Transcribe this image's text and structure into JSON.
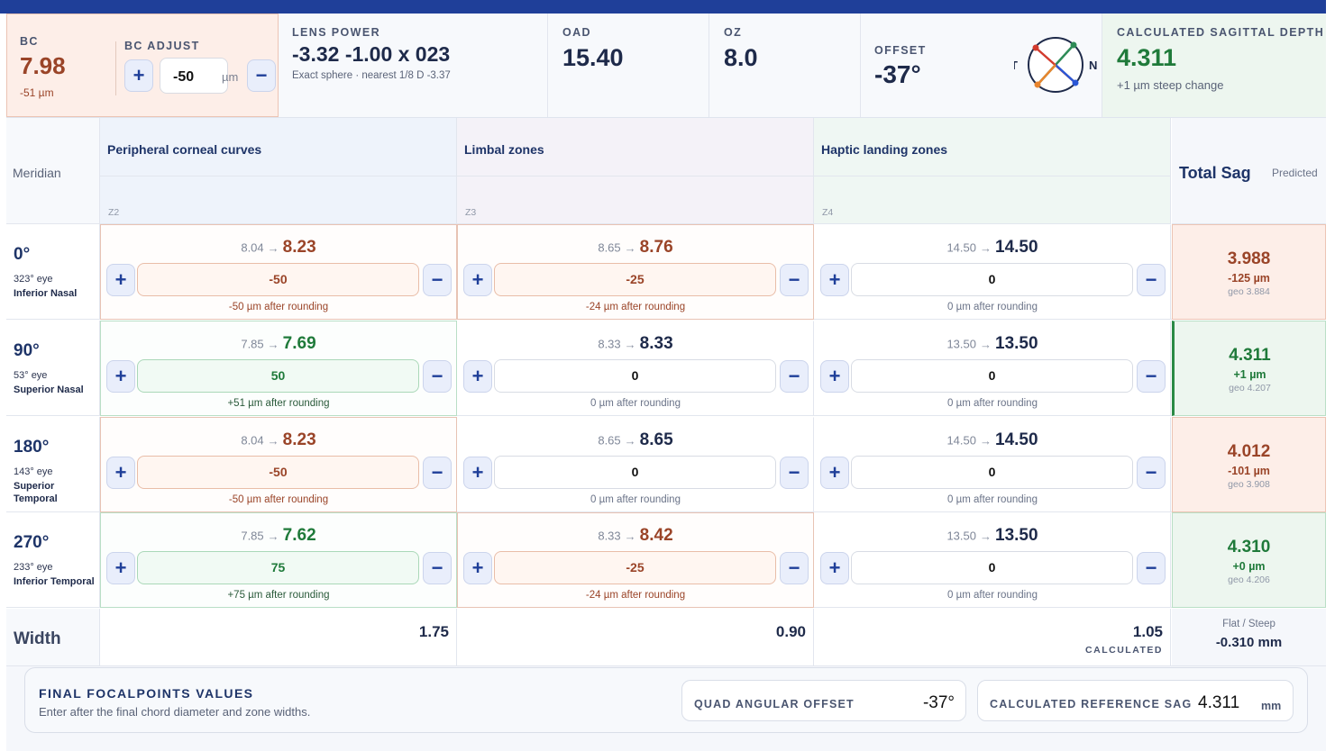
{
  "header": {
    "bc": {
      "label": "BC",
      "value": "7.98",
      "sub": "-51 µm"
    },
    "bc_adjust": {
      "label": "BC ADJUST",
      "value": "-50",
      "unit": "µm",
      "plus": "+",
      "minus": "−"
    },
    "lens_power": {
      "label": "LENS POWER",
      "value": "-3.32 -1.00 x 023",
      "sub": "Exact sphere · nearest 1/8 D -3.37"
    },
    "oad": {
      "label": "OAD",
      "value": "15.40"
    },
    "oz": {
      "label": "OZ",
      "value": "8.0"
    },
    "offset": {
      "label": "OFFSET",
      "value": "-37°",
      "compass_t": "T",
      "compass_n": "N"
    },
    "sag": {
      "label": "CALCULATED SAGITTAL DEPTH",
      "value": "4.311",
      "sub": "+1 µm steep change"
    }
  },
  "grid": {
    "meridian_label": "Meridian",
    "zones": [
      {
        "title": "Peripheral corneal curves",
        "sub": "Z2"
      },
      {
        "title": "Limbal zones",
        "sub": "Z3"
      },
      {
        "title": "Haptic landing zones",
        "sub": "Z4"
      }
    ],
    "total": {
      "title": "Total Sag",
      "sub": "Predicted"
    },
    "rows": [
      {
        "deg": "0°",
        "eye": "323° eye",
        "pos": "Inferior Nasal",
        "cells": [
          {
            "from": "8.04",
            "to": "8.23",
            "input": "-50",
            "note": "-50 µm after rounding"
          },
          {
            "from": "8.65",
            "to": "8.76",
            "input": "-25",
            "note": "-24 µm after rounding"
          },
          {
            "from": "14.50",
            "to": "14.50",
            "input": "0",
            "note": "0 µm after rounding"
          }
        ],
        "total": {
          "value": "3.988",
          "delta": "-125 µm",
          "geo": "geo 3.884"
        }
      },
      {
        "deg": "90°",
        "eye": "53° eye",
        "pos": "Superior Nasal",
        "cells": [
          {
            "from": "7.85",
            "to": "7.69",
            "input": "50",
            "note": "+51 µm after rounding"
          },
          {
            "from": "8.33",
            "to": "8.33",
            "input": "0",
            "note": "0 µm after rounding"
          },
          {
            "from": "13.50",
            "to": "13.50",
            "input": "0",
            "note": "0 µm after rounding"
          }
        ],
        "total": {
          "value": "4.311",
          "delta": "+1 µm",
          "geo": "geo 4.207"
        }
      },
      {
        "deg": "180°",
        "eye": "143° eye",
        "pos": "Superior Temporal",
        "cells": [
          {
            "from": "8.04",
            "to": "8.23",
            "input": "-50",
            "note": "-50 µm after rounding"
          },
          {
            "from": "8.65",
            "to": "8.65",
            "input": "0",
            "note": "0 µm after rounding"
          },
          {
            "from": "14.50",
            "to": "14.50",
            "input": "0",
            "note": "0 µm after rounding"
          }
        ],
        "total": {
          "value": "4.012",
          "delta": "-101 µm",
          "geo": "geo 3.908"
        }
      },
      {
        "deg": "270°",
        "eye": "233° eye",
        "pos": "Inferior Temporal",
        "cells": [
          {
            "from": "7.85",
            "to": "7.62",
            "input": "75",
            "note": "+75 µm after rounding"
          },
          {
            "from": "8.33",
            "to": "8.42",
            "input": "-25",
            "note": "-24 µm after rounding"
          },
          {
            "from": "13.50",
            "to": "13.50",
            "input": "0",
            "note": "0 µm after rounding"
          }
        ],
        "total": {
          "value": "4.310",
          "delta": "+0 µm",
          "geo": "geo 4.206"
        }
      }
    ],
    "width": {
      "label": "Width",
      "values": [
        "1.75",
        "0.90",
        "1.05"
      ],
      "calculated": "CALCULATED",
      "flat_steep_label": "Flat / Steep",
      "flat_steep_value": "-0.310 mm"
    },
    "arrow": "→",
    "plus": "+",
    "minus": "−"
  },
  "footer": {
    "title": "FINAL FOCALPOINTS VALUES",
    "sub": "Enter after the final chord diameter and zone widths.",
    "quad_label": "QUAD ANGULAR OFFSET",
    "quad_value": "-37°",
    "ref_label": "CALCULATED REFERENCE SAG",
    "ref_value": "4.311",
    "ref_unit": "mm"
  },
  "colors": {
    "brand": "#1f3f99",
    "steep": "#9a4428",
    "flat": "#1f7a3a",
    "steep_bg": "#fdeee8",
    "flat_bg": "#edf6ef"
  }
}
